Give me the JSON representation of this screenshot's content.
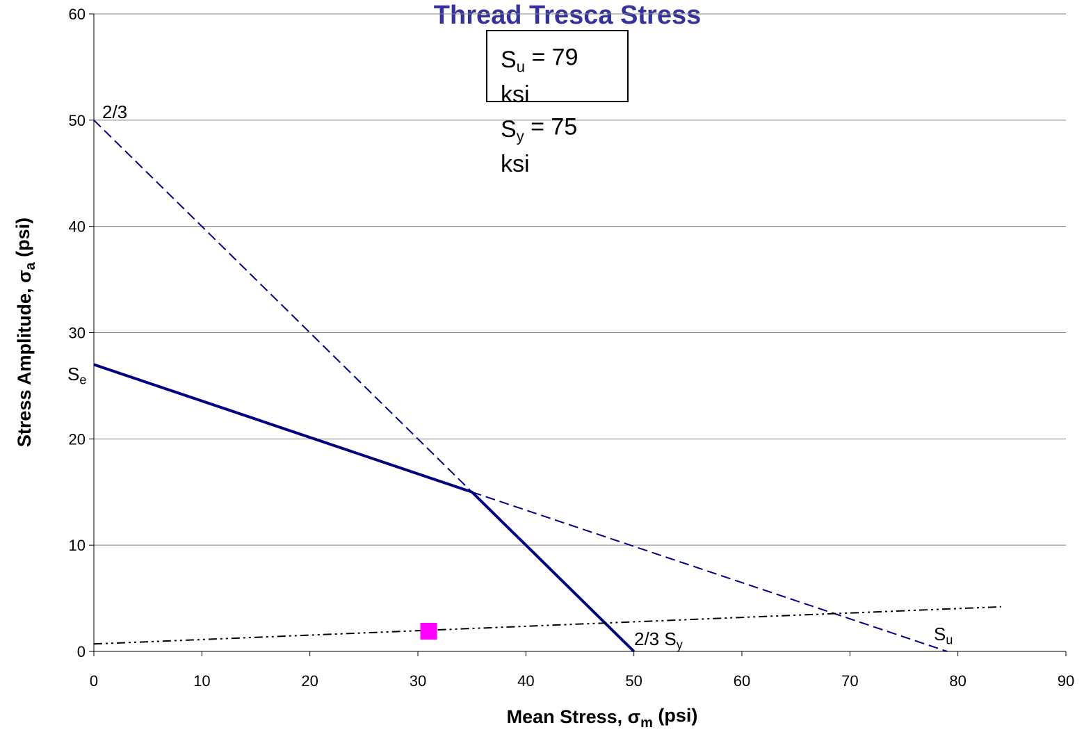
{
  "chart_data": {
    "type": "line",
    "title": "Thread Tresca Stress",
    "title_color": "#333399",
    "x_label": {
      "text": "Mean Stress, σ",
      "sub": "m",
      "after": " (psi)"
    },
    "y_label": {
      "text": "Stress Amplitude, σ",
      "sub": "a",
      "after": " (psi)"
    },
    "xlim": [
      0,
      90
    ],
    "xticks": [
      0,
      10,
      20,
      30,
      40,
      50,
      60,
      70,
      80,
      90
    ],
    "ylim": [
      0,
      60
    ],
    "yticks": [
      0,
      10,
      20,
      30,
      40,
      50,
      60
    ],
    "grid": true,
    "series": [
      {
        "color": "#000080",
        "style": "solid",
        "x": [
          0,
          35,
          50
        ],
        "values": [
          27,
          15,
          0
        ]
      },
      {
        "color": "#000080",
        "style": "dashed",
        "x": [
          0,
          35
        ],
        "values": [
          50,
          15
        ]
      },
      {
        "color": "#000080",
        "style": "dashed",
        "x": [
          35,
          79
        ],
        "values": [
          15,
          0
        ]
      },
      {
        "color": "#000000",
        "style": "dash-dot-dot",
        "x": [
          0,
          84
        ],
        "values": [
          0.7,
          4.2
        ]
      },
      {
        "color": "#ff00ff",
        "style": "marker",
        "x": [
          31
        ],
        "values": [
          1.9
        ]
      }
    ],
    "annotations": [
      {
        "text": "2/3"
      },
      {
        "text": "S",
        "sub": "e"
      },
      {
        "text": "2/3 S",
        "sub": "y"
      },
      {
        "text": "S",
        "sub": "u"
      }
    ],
    "textbox": [
      {
        "text": "S",
        "sub": "u",
        "after": " = 79"
      },
      {
        "text": "ksi"
      },
      {
        "text": "S",
        "sub": "y",
        "after": " = 75"
      },
      {
        "text": "ksi"
      }
    ]
  }
}
